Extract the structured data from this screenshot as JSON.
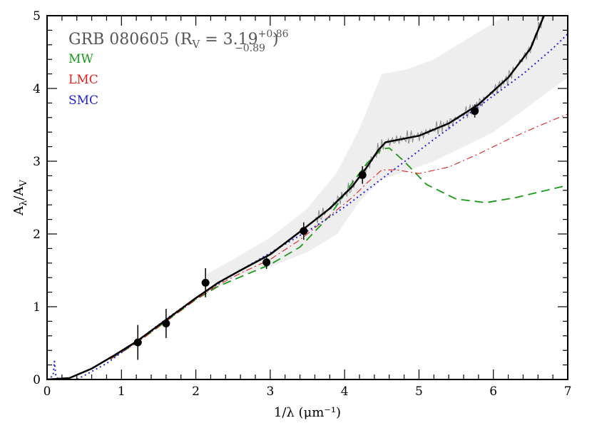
{
  "chart_data": {
    "type": "line",
    "title_main": "GRB 080605 (R",
    "title_sub": "V",
    "title_eq": " = 3.19",
    "title_sup": "+0.86",
    "title_subval": "−0.89",
    "title_close": ")",
    "xlabel": "1/λ (μm⁻¹)",
    "ylabel_main": "A",
    "ylabel_sub1": "λ",
    "ylabel_sep": "/A",
    "ylabel_sub2": "V",
    "xlim": [
      0,
      7
    ],
    "ylim": [
      0,
      5
    ],
    "xticks": [
      "0",
      "1",
      "2",
      "3",
      "4",
      "5",
      "6",
      "7"
    ],
    "yticks": [
      "0",
      "1",
      "2",
      "3",
      "4",
      "5"
    ],
    "colors": {
      "fit": "#000000",
      "mw": "#1a9a1a",
      "lmc": "#e02020",
      "smc": "#2020e0",
      "band": "#eeeeee",
      "spectrum": "#8a8a8a",
      "points": "#000000"
    },
    "legend": [
      {
        "key": "mw",
        "label": "MW"
      },
      {
        "key": "lmc",
        "label": "LMC"
      },
      {
        "key": "smc",
        "label": "SMC"
      }
    ],
    "band": {
      "x": [
        2.15,
        2.5,
        3.0,
        3.5,
        3.9,
        4.2,
        4.5,
        4.8,
        5.2,
        6.0,
        7.0
      ],
      "upper": [
        1.45,
        1.65,
        1.95,
        2.35,
        2.85,
        3.45,
        4.2,
        4.25,
        4.4,
        4.9,
        5.5
      ],
      "lower": [
        1.3,
        1.4,
        1.55,
        1.75,
        2.0,
        2.45,
        2.75,
        2.85,
        3.0,
        3.4,
        4.15
      ]
    },
    "series": [
      {
        "key": "fit",
        "x": [
          0.0,
          0.3,
          0.6,
          0.9,
          1.2,
          1.6,
          2.0,
          2.3,
          2.6,
          3.0,
          3.4,
          3.8,
          4.1,
          4.3,
          4.45,
          4.55,
          4.7,
          5.0,
          5.4,
          5.8,
          6.2,
          6.5,
          6.7
        ],
        "y": [
          0.0,
          0.02,
          0.15,
          0.33,
          0.52,
          0.82,
          1.12,
          1.33,
          1.5,
          1.72,
          2.03,
          2.35,
          2.65,
          2.92,
          3.15,
          3.26,
          3.29,
          3.35,
          3.52,
          3.78,
          4.15,
          4.55,
          5.05
        ]
      },
      {
        "key": "mw",
        "x": [
          0.85,
          1.2,
          1.6,
          2.0,
          2.3,
          2.6,
          3.0,
          3.4,
          3.8,
          4.1,
          4.3,
          4.5,
          4.6,
          4.8,
          5.1,
          5.5,
          5.9,
          6.3,
          7.0
        ],
        "y": [
          0.28,
          0.5,
          0.8,
          1.1,
          1.28,
          1.41,
          1.58,
          1.82,
          2.25,
          2.7,
          2.97,
          3.17,
          3.18,
          3.0,
          2.68,
          2.48,
          2.43,
          2.5,
          2.67
        ]
      },
      {
        "key": "lmc",
        "x": [
          0.85,
          1.2,
          1.6,
          2.0,
          2.3,
          2.6,
          3.0,
          3.4,
          3.8,
          4.1,
          4.3,
          4.5,
          4.7,
          5.0,
          5.4,
          5.8,
          6.2,
          6.6,
          7.0
        ],
        "y": [
          0.28,
          0.5,
          0.8,
          1.1,
          1.3,
          1.46,
          1.65,
          1.92,
          2.25,
          2.5,
          2.7,
          2.88,
          2.88,
          2.83,
          2.92,
          3.1,
          3.3,
          3.48,
          3.65
        ]
      },
      {
        "key": "smc",
        "x": [
          0.0,
          0.08,
          0.1,
          0.12,
          0.2,
          0.4,
          0.8,
          1.2,
          1.6,
          2.0,
          2.4,
          2.8,
          3.2,
          3.6,
          4.0,
          4.4,
          4.8,
          5.2,
          5.6,
          6.0,
          6.4,
          6.8,
          7.0
        ],
        "y": [
          0.0,
          0.05,
          0.25,
          0.03,
          -0.02,
          0.0,
          0.22,
          0.52,
          0.83,
          1.12,
          1.38,
          1.62,
          1.86,
          2.1,
          2.37,
          2.68,
          2.99,
          3.3,
          3.6,
          3.9,
          4.2,
          4.55,
          4.75
        ]
      }
    ],
    "points": [
      {
        "x": 1.22,
        "y": 0.51,
        "yerr": 0.24
      },
      {
        "x": 1.6,
        "y": 0.77,
        "yerr": 0.2
      },
      {
        "x": 2.13,
        "y": 1.33,
        "yerr": 0.2
      },
      {
        "x": 2.95,
        "y": 1.61,
        "yerr": 0.09
      },
      {
        "x": 3.45,
        "y": 2.04,
        "yerr": 0.12
      },
      {
        "x": 4.24,
        "y": 2.81,
        "yerr": 0.12
      },
      {
        "x": 5.75,
        "y": 3.69,
        "yerr": 0.09
      }
    ],
    "spectrum": {
      "x_start": 3.6,
      "x_end": 6.7,
      "step": 0.018
    }
  }
}
